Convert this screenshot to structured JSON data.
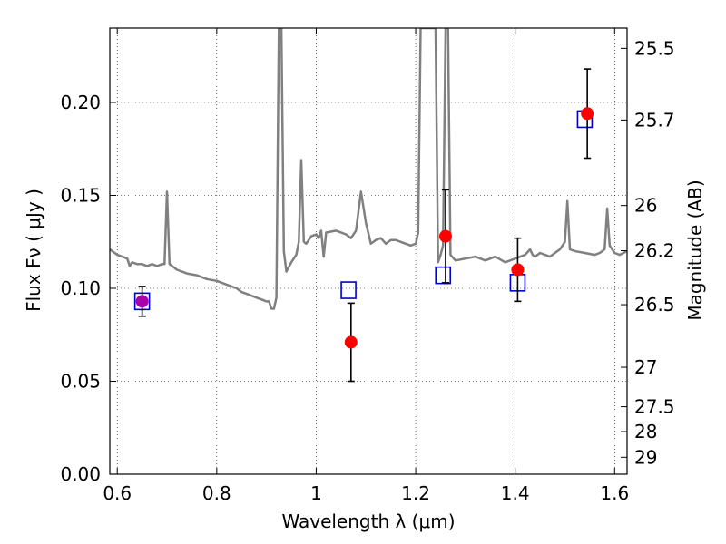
{
  "chart_data": {
    "type": "scatter",
    "title": "",
    "xlabel": "Wavelength  λ (μm)",
    "ylabel": "Flux  Fν  ( μJy )",
    "y2label": "Magnitude (AB)",
    "xlim": [
      0.585,
      1.625
    ],
    "ylim": [
      0.0,
      0.24
    ],
    "grid": true,
    "x_ticks": [
      0.6,
      0.8,
      1.0,
      1.2,
      1.4,
      1.6
    ],
    "x_tick_labels": [
      "0.6",
      "0.8",
      "1",
      "1.2",
      "1.4",
      "1.6"
    ],
    "y_ticks": [
      0.0,
      0.05,
      0.1,
      0.15,
      0.2
    ],
    "y_tick_labels": [
      "0.00",
      "0.05",
      "0.10",
      "0.15",
      "0.20"
    ],
    "y2_tick_labels": [
      "25.5",
      "25.7",
      "26",
      "26.2",
      "26.5",
      "27",
      "27.5",
      "28",
      "29"
    ],
    "colors": {
      "spectrum": "#808080",
      "observed": "#ff0000",
      "model": "#0000cc",
      "overlap": "#aa00aa",
      "errorbar": "#000000"
    },
    "series": [
      {
        "values": [
          {
            "x": 0.65,
            "y": 0.093,
            "yerr": 0.008
          },
          {
            "x": 1.07,
            "y": 0.071,
            "yerr": 0.021
          },
          {
            "x": 1.26,
            "y": 0.128,
            "yerr": 0.025
          },
          {
            "x": 1.405,
            "y": 0.11,
            "yerr": 0.017
          },
          {
            "x": 1.545,
            "y": 0.194,
            "yerr": 0.024
          }
        ]
      },
      {
        "values": [
          {
            "x": 0.65,
            "y": 0.093
          },
          {
            "x": 1.065,
            "y": 0.099
          },
          {
            "x": 1.255,
            "y": 0.107
          },
          {
            "x": 1.405,
            "y": 0.103
          },
          {
            "x": 1.54,
            "y": 0.191
          }
        ]
      },
      {
        "type": "line",
        "values": [
          [
            0.585,
            0.121
          ],
          [
            0.59,
            0.12
          ],
          [
            0.6,
            0.118
          ],
          [
            0.61,
            0.117
          ],
          [
            0.62,
            0.116
          ],
          [
            0.625,
            0.112
          ],
          [
            0.63,
            0.114
          ],
          [
            0.64,
            0.113
          ],
          [
            0.65,
            0.113
          ],
          [
            0.66,
            0.112
          ],
          [
            0.67,
            0.113
          ],
          [
            0.68,
            0.112
          ],
          [
            0.69,
            0.113
          ],
          [
            0.695,
            0.113
          ],
          [
            0.7,
            0.152
          ],
          [
            0.705,
            0.113
          ],
          [
            0.72,
            0.11
          ],
          [
            0.74,
            0.108
          ],
          [
            0.76,
            0.107
          ],
          [
            0.78,
            0.105
          ],
          [
            0.8,
            0.104
          ],
          [
            0.82,
            0.102
          ],
          [
            0.84,
            0.1
          ],
          [
            0.85,
            0.098
          ],
          [
            0.86,
            0.097
          ],
          [
            0.87,
            0.096
          ],
          [
            0.88,
            0.095
          ],
          [
            0.89,
            0.094
          ],
          [
            0.9,
            0.093
          ],
          [
            0.905,
            0.093
          ],
          [
            0.91,
            0.089
          ],
          [
            0.915,
            0.089
          ],
          [
            0.92,
            0.095
          ],
          [
            0.925,
            0.24
          ],
          [
            0.93,
            0.24
          ],
          [
            0.935,
            0.12
          ],
          [
            0.94,
            0.109
          ],
          [
            0.95,
            0.114
          ],
          [
            0.96,
            0.118
          ],
          [
            0.965,
            0.125
          ],
          [
            0.97,
            0.169
          ],
          [
            0.975,
            0.125
          ],
          [
            0.98,
            0.124
          ],
          [
            0.99,
            0.128
          ],
          [
            1.0,
            0.129
          ],
          [
            1.005,
            0.127
          ],
          [
            1.01,
            0.131
          ],
          [
            1.015,
            0.117
          ],
          [
            1.02,
            0.13
          ],
          [
            1.04,
            0.131
          ],
          [
            1.06,
            0.129
          ],
          [
            1.07,
            0.127
          ],
          [
            1.08,
            0.131
          ],
          [
            1.09,
            0.152
          ],
          [
            1.1,
            0.135
          ],
          [
            1.11,
            0.124
          ],
          [
            1.12,
            0.126
          ],
          [
            1.13,
            0.127
          ],
          [
            1.14,
            0.124
          ],
          [
            1.15,
            0.126
          ],
          [
            1.16,
            0.126
          ],
          [
            1.17,
            0.125
          ],
          [
            1.18,
            0.124
          ],
          [
            1.19,
            0.123
          ],
          [
            1.2,
            0.124
          ],
          [
            1.205,
            0.13
          ],
          [
            1.21,
            0.24
          ],
          [
            1.24,
            0.24
          ],
          [
            1.245,
            0.114
          ],
          [
            1.25,
            0.118
          ],
          [
            1.255,
            0.123
          ],
          [
            1.26,
            0.24
          ],
          [
            1.265,
            0.24
          ],
          [
            1.27,
            0.118
          ],
          [
            1.28,
            0.115
          ],
          [
            1.3,
            0.116
          ],
          [
            1.32,
            0.117
          ],
          [
            1.34,
            0.115
          ],
          [
            1.36,
            0.117
          ],
          [
            1.38,
            0.114
          ],
          [
            1.4,
            0.116
          ],
          [
            1.42,
            0.118
          ],
          [
            1.43,
            0.121
          ],
          [
            1.435,
            0.118
          ],
          [
            1.44,
            0.117
          ],
          [
            1.45,
            0.119
          ],
          [
            1.46,
            0.118
          ],
          [
            1.47,
            0.117
          ],
          [
            1.48,
            0.119
          ],
          [
            1.49,
            0.121
          ],
          [
            1.5,
            0.125
          ],
          [
            1.505,
            0.147
          ],
          [
            1.51,
            0.121
          ],
          [
            1.52,
            0.12
          ],
          [
            1.54,
            0.119
          ],
          [
            1.56,
            0.118
          ],
          [
            1.57,
            0.119
          ],
          [
            1.58,
            0.121
          ],
          [
            1.585,
            0.143
          ],
          [
            1.59,
            0.123
          ],
          [
            1.6,
            0.119
          ],
          [
            1.61,
            0.118
          ],
          [
            1.625,
            0.12
          ]
        ]
      }
    ]
  }
}
